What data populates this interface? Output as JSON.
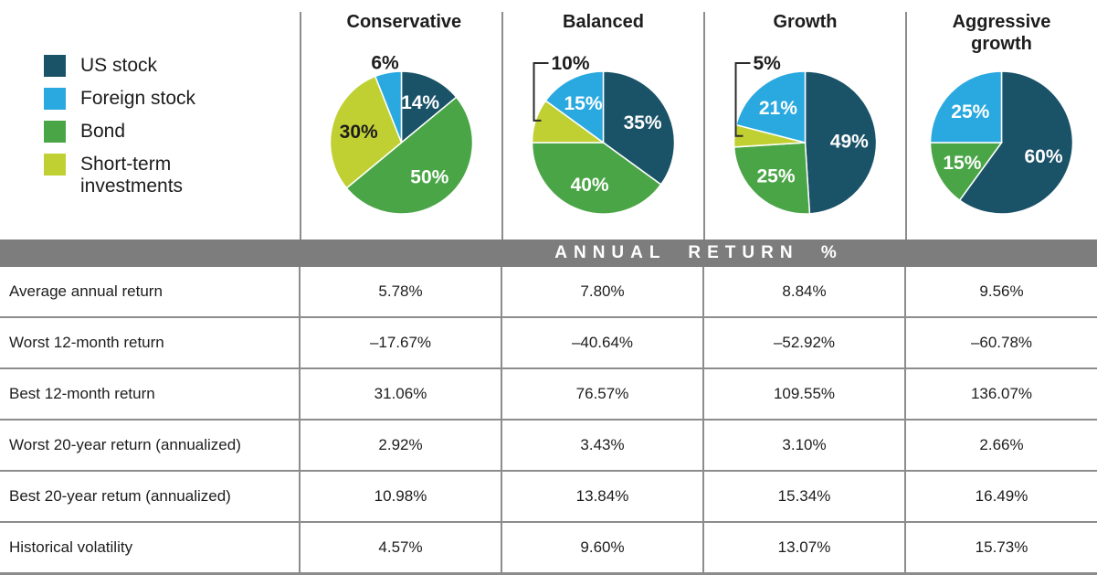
{
  "colors": {
    "us_stock": "#1A5268",
    "foreign_stock": "#29A9E0",
    "bond": "#4AA546",
    "short_term": "#C0D033",
    "band_gray": "#7D7D7D",
    "border_gray": "#8C8C8C",
    "text_dark": "#1D1D1D",
    "label_white": "#FFFFFF"
  },
  "legend": {
    "items": [
      {
        "label": "US stock",
        "color_key": "us_stock"
      },
      {
        "label": "Foreign stock",
        "color_key": "foreign_stock"
      },
      {
        "label": "Bond",
        "color_key": "bond"
      },
      {
        "label": "Short-term investments",
        "color_key": "short_term"
      }
    ]
  },
  "band": {
    "title": "ANNUAL RETURN %"
  },
  "chart_data": {
    "type": "pie",
    "slice_order": "clockwise from 12 o'clock",
    "legend_position": "left",
    "charts": [
      {
        "title": "Conservative",
        "slices": [
          {
            "label": "US stock",
            "value": 14,
            "color_key": "us_stock",
            "label_style": "inside-white"
          },
          {
            "label": "Bond",
            "value": 50,
            "color_key": "bond",
            "label_style": "inside-white"
          },
          {
            "label": "Short-term investments",
            "value": 30,
            "color_key": "short_term",
            "label_style": "inside-dark"
          },
          {
            "label": "Foreign stock",
            "value": 6,
            "color_key": "foreign_stock",
            "label_style": "outside"
          }
        ]
      },
      {
        "title": "Balanced",
        "slices": [
          {
            "label": "US stock",
            "value": 35,
            "color_key": "us_stock",
            "label_style": "inside-white"
          },
          {
            "label": "Bond",
            "value": 40,
            "color_key": "bond",
            "label_style": "inside-white"
          },
          {
            "label": "Short-term investments",
            "value": 10,
            "color_key": "short_term",
            "label_style": "callout"
          },
          {
            "label": "Foreign stock",
            "value": 15,
            "color_key": "foreign_stock",
            "label_style": "inside-white"
          }
        ]
      },
      {
        "title": "Growth",
        "slices": [
          {
            "label": "US stock",
            "value": 49,
            "color_key": "us_stock",
            "label_style": "inside-white"
          },
          {
            "label": "Bond",
            "value": 25,
            "color_key": "bond",
            "label_style": "inside-white"
          },
          {
            "label": "Short-term investments",
            "value": 5,
            "color_key": "short_term",
            "label_style": "callout"
          },
          {
            "label": "Foreign stock",
            "value": 21,
            "color_key": "foreign_stock",
            "label_style": "inside-white"
          }
        ]
      },
      {
        "title": "Aggressive growth",
        "slices": [
          {
            "label": "US stock",
            "value": 60,
            "color_key": "us_stock",
            "label_style": "inside-white"
          },
          {
            "label": "Bond",
            "value": 15,
            "color_key": "bond",
            "label_style": "inside-white"
          },
          {
            "label": "Foreign stock",
            "value": 25,
            "color_key": "foreign_stock",
            "label_style": "inside-white"
          }
        ]
      }
    ]
  },
  "table": {
    "section_title": "ANNUAL RETURN %",
    "column_headers": [
      "",
      "Conservative",
      "Balanced",
      "Growth",
      "Aggressive growth"
    ],
    "rows": [
      {
        "label": "Average annual return",
        "values": [
          "5.78%",
          "7.80%",
          "8.84%",
          "9.56%"
        ]
      },
      {
        "label": "Worst 12-month return",
        "values": [
          "–17.67%",
          "–40.64%",
          "–52.92%",
          "–60.78%"
        ]
      },
      {
        "label": "Best 12-month return",
        "values": [
          "31.06%",
          "76.57%",
          "109.55%",
          "136.07%"
        ]
      },
      {
        "label": "Worst 20-year return (annualized)",
        "values": [
          "2.92%",
          "3.43%",
          "3.10%",
          "2.66%"
        ]
      },
      {
        "label": "Best 20-year retum (annualized)",
        "values": [
          "10.98%",
          "13.84%",
          "15.34%",
          "16.49%"
        ]
      },
      {
        "label": "Historical volatility",
        "values": [
          "4.57%",
          "9.60%",
          "13.07%",
          "15.73%"
        ]
      }
    ]
  }
}
